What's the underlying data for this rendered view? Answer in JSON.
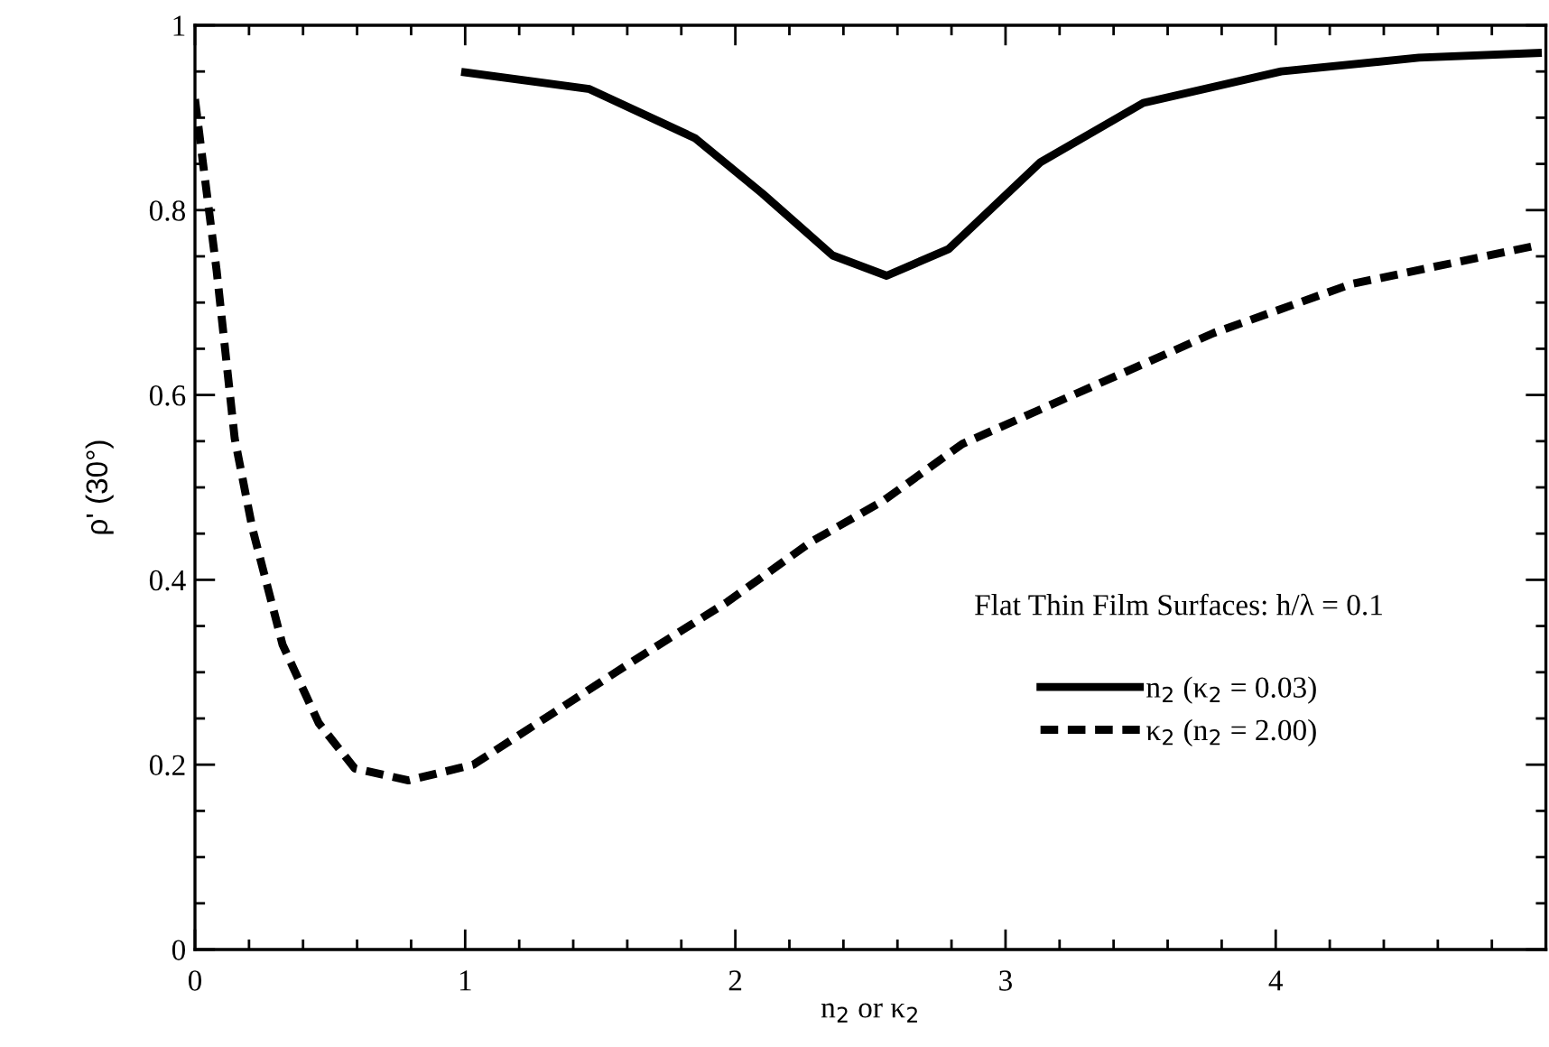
{
  "chart_data": {
    "type": "line",
    "xlabel": "n$_{2}$ or κ$_{2}$",
    "ylabel": "ρ' (30°)",
    "legend_title": "Flat Thin Film Surfaces: h/λ = 0.1",
    "legend": "bottom right",
    "grid": false,
    "marker": "none",
    "xlim": [
      0,
      5
    ],
    "ylim": [
      0,
      1
    ],
    "xticks": [
      0,
      {
        "value": 0.2,
        "label": null
      },
      {
        "value": 0.4,
        "label": null
      },
      {
        "value": 0.6,
        "label": null
      },
      {
        "value": 0.8,
        "label": null
      },
      1,
      {
        "value": 1.2,
        "label": null
      },
      {
        "value": 1.4,
        "label": null
      },
      {
        "value": 1.6,
        "label": null
      },
      {
        "value": 1.8,
        "label": null
      },
      2,
      {
        "value": 2.2,
        "label": null
      },
      {
        "value": 2.4,
        "label": null
      },
      {
        "value": 2.6,
        "label": null
      },
      {
        "value": 2.8,
        "label": null
      },
      3,
      {
        "value": 3.2,
        "label": null
      },
      {
        "value": 3.4,
        "label": null
      },
      {
        "value": 3.6,
        "label": null
      },
      {
        "value": 3.8,
        "label": null
      },
      4,
      {
        "value": 4.2,
        "label": null
      },
      {
        "value": 4.4,
        "label": null
      },
      {
        "value": 4.6,
        "label": null
      },
      {
        "value": 4.8,
        "label": null
      }
    ],
    "yticks": [
      0,
      {
        "value": 0.05,
        "label": null
      },
      {
        "value": 0.1,
        "label": null
      },
      {
        "value": 0.15,
        "label": null
      },
      0.2,
      {
        "value": 0.25,
        "label": null
      },
      {
        "value": 0.3,
        "label": null
      },
      {
        "value": 0.35,
        "label": null
      },
      0.4,
      {
        "value": 0.45,
        "label": null
      },
      {
        "value": 0.5,
        "label": null
      },
      {
        "value": 0.55,
        "label": null
      },
      0.6,
      {
        "value": 0.65,
        "label": null
      },
      {
        "value": 0.7,
        "label": null
      },
      {
        "value": 0.75,
        "label": null
      },
      0.8,
      {
        "value": 0.85,
        "label": null
      },
      {
        "value": 0.9,
        "label": null
      },
      {
        "value": 0.95,
        "label": null
      },
      1
    ],
    "series": [
      {
        "name": "n$_{2}$ (κ$_{2}$ = 0.03)",
        "color": "#000000",
        "line_style": "solid",
        "x": [
          1.0,
          1.46,
          1.85,
          2.1,
          2.36,
          2.56,
          2.79,
          3.13,
          3.51,
          4.02,
          4.53,
          4.97
        ],
        "values": [
          0.949,
          0.931,
          0.878,
          0.818,
          0.751,
          0.729,
          0.758,
          0.852,
          0.916,
          0.95,
          0.965,
          0.97
        ]
      },
      {
        "name": "κ$_{2}$ (n$_{2}$ = 2.00)",
        "color": "#000000",
        "line_style": "dashed",
        "x": [
          0.0,
          0.03,
          0.08,
          0.147,
          0.213,
          0.324,
          0.458,
          0.591,
          0.79,
          1.03,
          1.3,
          1.61,
          1.97,
          2.28,
          2.55,
          2.84,
          3.25,
          3.77,
          4.28,
          4.97
        ],
        "values": [
          0.92,
          0.85,
          0.735,
          0.553,
          0.455,
          0.33,
          0.245,
          0.196,
          0.183,
          0.2,
          0.251,
          0.31,
          0.376,
          0.441,
          0.486,
          0.547,
          0.6,
          0.667,
          0.72,
          0.762
        ]
      }
    ]
  }
}
